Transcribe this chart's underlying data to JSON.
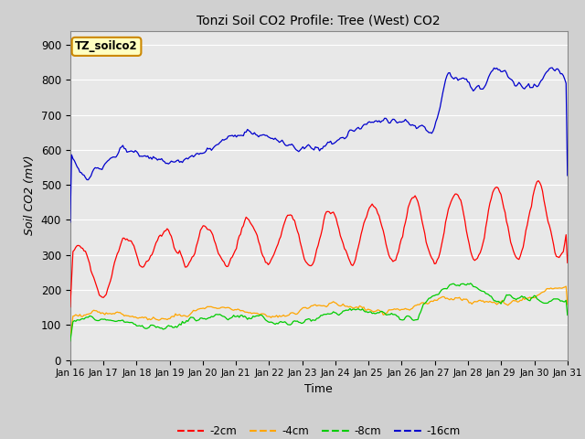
{
  "title": "Tonzi Soil CO2 Profile: Tree (West) CO2",
  "ylabel": "Soil CO2 (mV)",
  "xlabel": "Time",
  "watermark": "TZ_soilco2",
  "ylim": [
    0,
    940
  ],
  "yticks": [
    0,
    100,
    200,
    300,
    400,
    500,
    600,
    700,
    800,
    900
  ],
  "x_labels": [
    "Jan 16",
    "Jan 17",
    "Jan 18",
    "Jan 19",
    "Jan 20",
    "Jan 21",
    "Jan 22",
    "Jan 23",
    "Jan 24",
    "Jan 25",
    "Jan 26",
    "Jan 27",
    "Jan 28",
    "Jan 29",
    "Jan 30",
    "Jan 31"
  ],
  "colors": {
    "m2cm": "#FF0000",
    "m4cm": "#FFA500",
    "m8cm": "#00CC00",
    "m16cm": "#0000CC"
  },
  "legend_labels": [
    "-2cm",
    "-4cm",
    "-8cm",
    "-16cm"
  ],
  "fig_bg": "#D0D0D0",
  "plot_bg": "#E8E8E8",
  "grid_color": "#FFFFFF"
}
